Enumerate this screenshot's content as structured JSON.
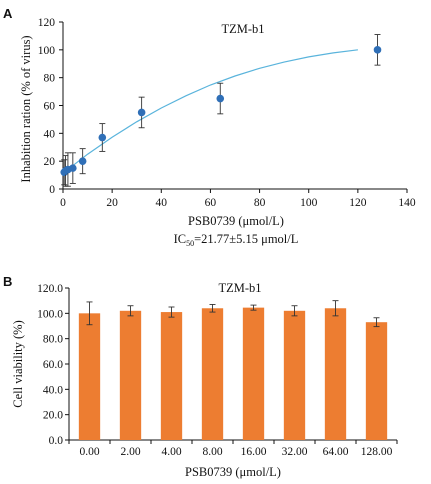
{
  "panels": [
    {
      "letter": "A",
      "ic50_prefix": "IC",
      "ic50_sub": "50",
      "ic50_rest": "=21.77±5.15 μmol/L"
    },
    {
      "letter": "B"
    }
  ],
  "colors": {
    "point": "#2f6fb7",
    "curve": "#5ab4dc",
    "bar": "#ed7d31",
    "axis": "#111111"
  },
  "chart_data": [
    {
      "type": "scatter",
      "title": "TZM-b1",
      "xlabel": "PSB0739 (μmol/L)",
      "ylabel": "Inhabition ration (% of virus)",
      "xlim": [
        0,
        140
      ],
      "ylim": [
        0,
        120
      ],
      "xticks": [
        0,
        20,
        40,
        60,
        80,
        100,
        120,
        140
      ],
      "yticks": [
        0,
        20,
        40,
        60,
        80,
        100,
        120
      ],
      "points": [
        {
          "x": 0.5,
          "y": 12,
          "err": 9
        },
        {
          "x": 1,
          "y": 13,
          "err": 11
        },
        {
          "x": 2,
          "y": 14,
          "err": 12
        },
        {
          "x": 4,
          "y": 15,
          "err": 11
        },
        {
          "x": 8,
          "y": 20,
          "err": 9
        },
        {
          "x": 16,
          "y": 37,
          "err": 10
        },
        {
          "x": 32,
          "y": 55,
          "err": 11
        },
        {
          "x": 64,
          "y": 65,
          "err": 11
        },
        {
          "x": 128,
          "y": 100,
          "err": 11
        }
      ],
      "fit_curve": {
        "x": [
          0.5,
          10,
          20,
          30,
          40,
          50,
          60,
          70,
          80,
          90,
          100,
          110,
          120
        ],
        "y": [
          12,
          25,
          37.2,
          48.3,
          58.2,
          67,
          74.7,
          81.2,
          86.7,
          91.2,
          94.9,
          97.8,
          100
        ]
      }
    },
    {
      "type": "bar",
      "title": "TZM-b1",
      "xlabel": "PSB0739 (μmol/L)",
      "ylabel": "Cell viability (%)",
      "ylim": [
        0,
        120
      ],
      "yticks": [
        "0.0",
        "20.0",
        "40.0",
        "60.0",
        "80.0",
        "100.0",
        "120.0"
      ],
      "categories": [
        "0.00",
        "2.00",
        "4.00",
        "8.00",
        "16.00",
        "32.00",
        "64.00",
        "128.00"
      ],
      "values": [
        100,
        102,
        101,
        104,
        104.5,
        102,
        104,
        93
      ],
      "errors": [
        9,
        4,
        4,
        3,
        2,
        4,
        6,
        3.5
      ]
    }
  ]
}
